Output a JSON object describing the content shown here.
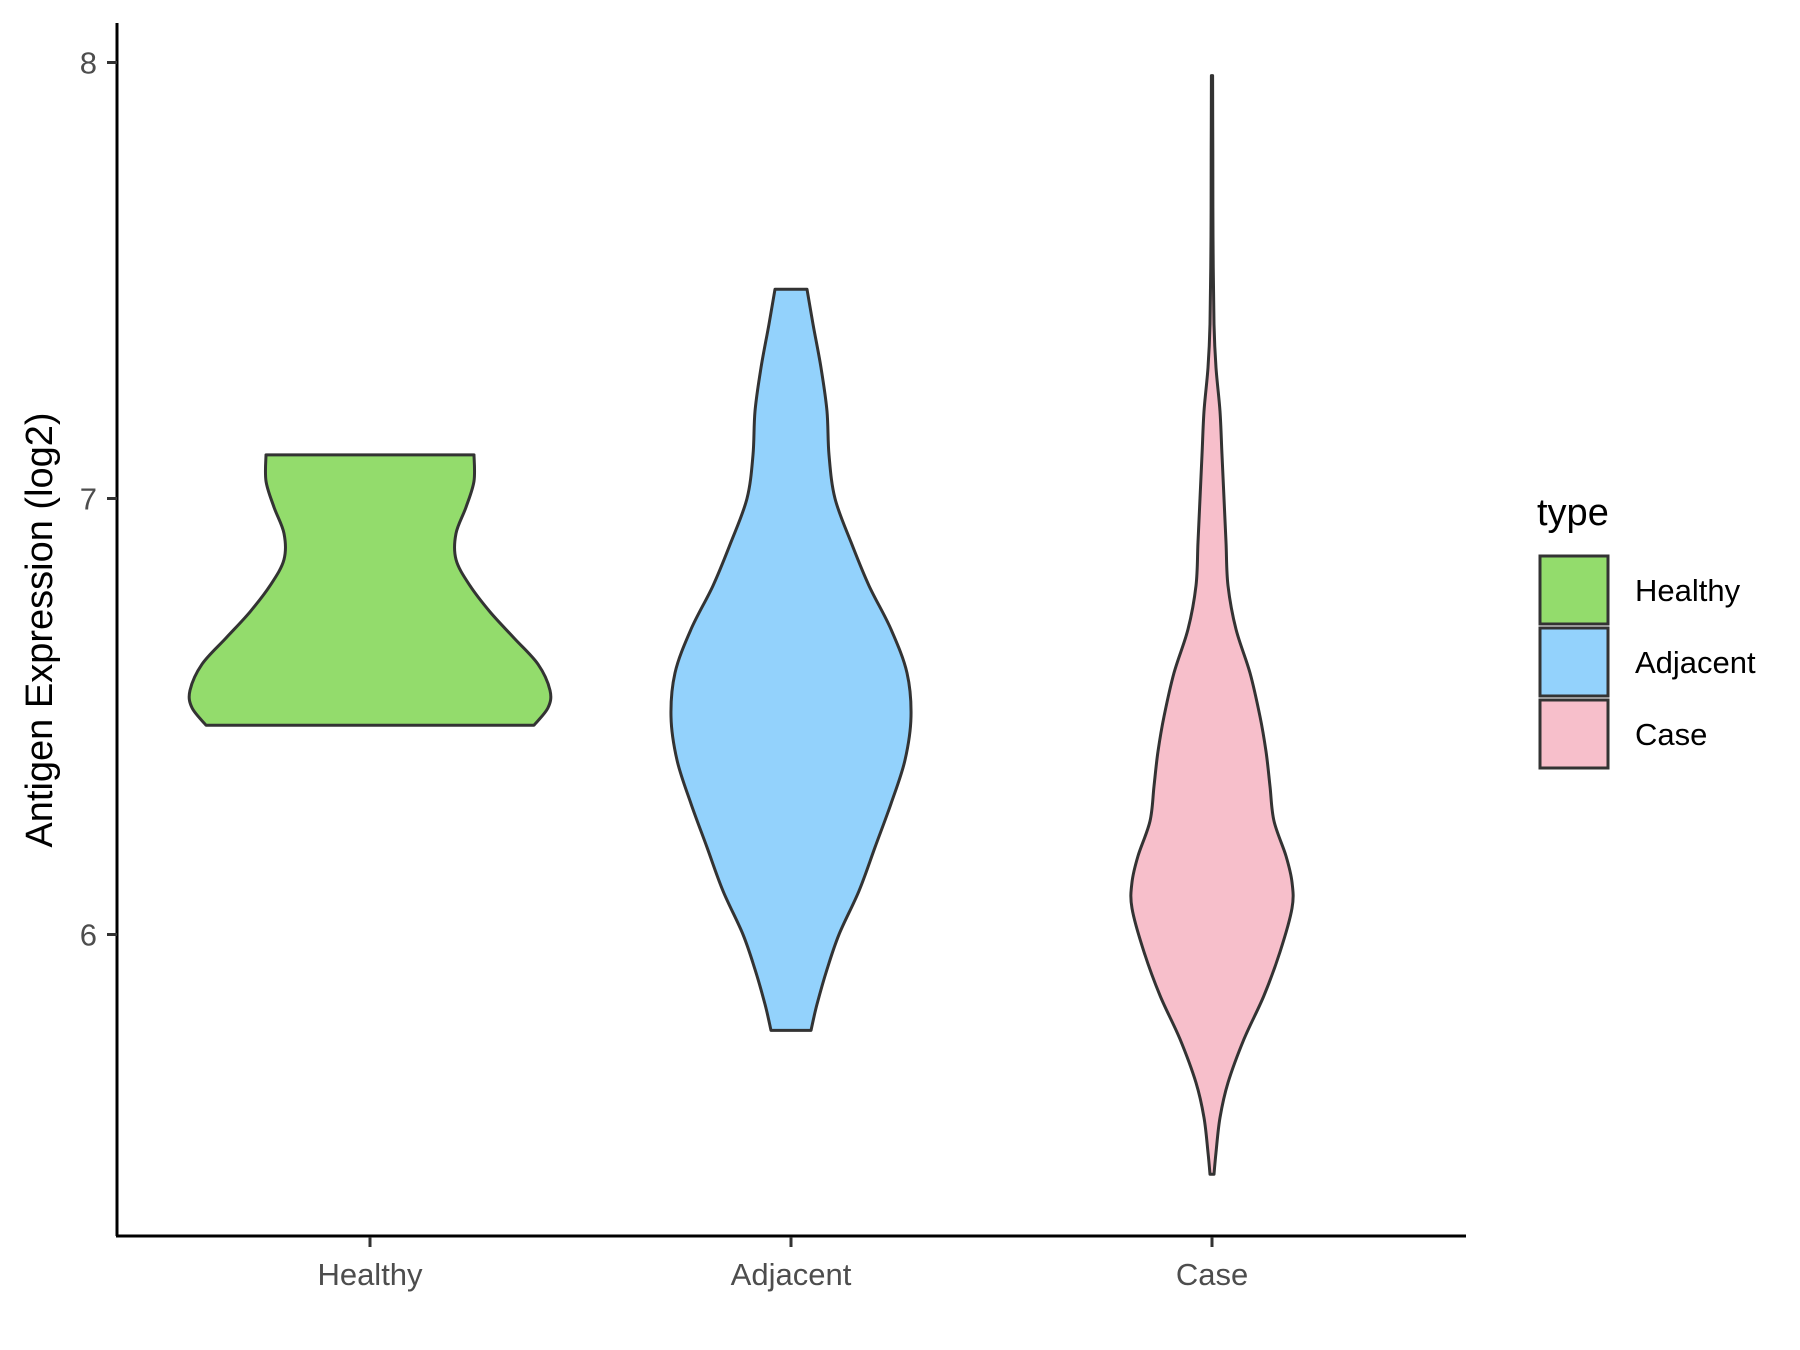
{
  "chart_data": {
    "type": "violin",
    "title": "",
    "xlabel": "",
    "ylabel": "Antigen Expression (log2)",
    "categories": [
      "Healthy",
      "Adjacent",
      "Case"
    ],
    "yticks": [
      6,
      7,
      8
    ],
    "ylim": [
      5.35,
      8.1
    ],
    "grid": false,
    "legend": {
      "title": "type",
      "position": "right",
      "entries": [
        "Healthy",
        "Adjacent",
        "Case"
      ]
    },
    "series": [
      {
        "category": "Healthy",
        "color": "#93dc6c",
        "y_min": 6.48,
        "y_max": 7.1,
        "density_profile": [
          [
            6.48,
            0.82
          ],
          [
            6.52,
            0.89
          ],
          [
            6.56,
            0.9
          ],
          [
            6.62,
            0.84
          ],
          [
            6.68,
            0.72
          ],
          [
            6.74,
            0.6
          ],
          [
            6.8,
            0.5
          ],
          [
            6.86,
            0.43
          ],
          [
            6.92,
            0.43
          ],
          [
            6.98,
            0.48
          ],
          [
            7.04,
            0.52
          ],
          [
            7.1,
            0.52
          ]
        ]
      },
      {
        "category": "Adjacent",
        "color": "#93d2fc",
        "y_min": 5.78,
        "y_max": 7.48,
        "density_profile": [
          [
            5.78,
            0.1
          ],
          [
            5.84,
            0.13
          ],
          [
            5.92,
            0.18
          ],
          [
            6.0,
            0.24
          ],
          [
            6.1,
            0.34
          ],
          [
            6.2,
            0.42
          ],
          [
            6.3,
            0.5
          ],
          [
            6.4,
            0.57
          ],
          [
            6.5,
            0.6
          ],
          [
            6.6,
            0.58
          ],
          [
            6.7,
            0.5
          ],
          [
            6.8,
            0.39
          ],
          [
            6.9,
            0.3
          ],
          [
            7.0,
            0.22
          ],
          [
            7.1,
            0.19
          ],
          [
            7.2,
            0.18
          ],
          [
            7.3,
            0.15
          ],
          [
            7.4,
            0.11
          ],
          [
            7.48,
            0.08
          ]
        ]
      },
      {
        "category": "Case",
        "color": "#f7bfcb",
        "y_min": 5.45,
        "y_max": 7.97,
        "density_profile": [
          [
            5.45,
            0.01
          ],
          [
            5.5,
            0.02
          ],
          [
            5.58,
            0.04
          ],
          [
            5.66,
            0.08
          ],
          [
            5.76,
            0.16
          ],
          [
            5.86,
            0.26
          ],
          [
            5.96,
            0.34
          ],
          [
            6.06,
            0.4
          ],
          [
            6.12,
            0.4
          ],
          [
            6.18,
            0.37
          ],
          [
            6.26,
            0.31
          ],
          [
            6.34,
            0.29
          ],
          [
            6.42,
            0.27
          ],
          [
            6.5,
            0.24
          ],
          [
            6.6,
            0.19
          ],
          [
            6.7,
            0.12
          ],
          [
            6.8,
            0.08
          ],
          [
            6.9,
            0.07
          ],
          [
            7.0,
            0.06
          ],
          [
            7.1,
            0.05
          ],
          [
            7.2,
            0.04
          ],
          [
            7.3,
            0.02
          ],
          [
            7.4,
            0.01
          ],
          [
            7.6,
            0.005
          ],
          [
            7.8,
            0.004
          ],
          [
            7.97,
            0.003
          ]
        ]
      }
    ]
  }
}
